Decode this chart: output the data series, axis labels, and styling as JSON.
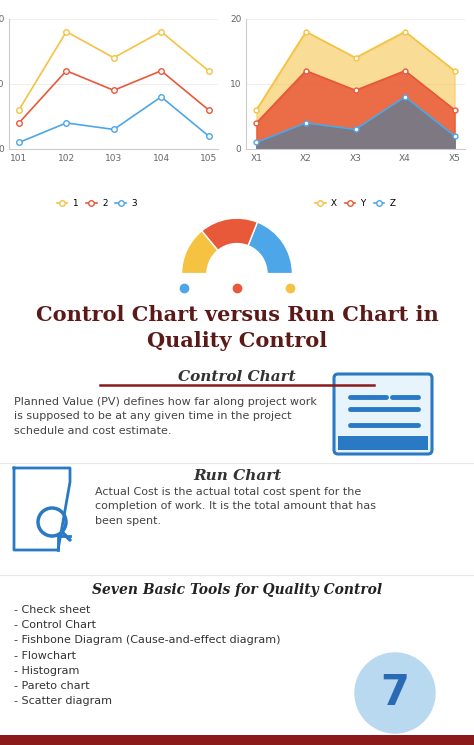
{
  "bg_color": "#ffffff",
  "title": "Control Chart versus Run Chart in\nQuality Control",
  "title_color": "#5b1a18",
  "title_fontsize": 15,
  "line_chart_x": [
    101,
    102,
    103,
    104,
    105
  ],
  "line_chart_y1": [
    6,
    18,
    14,
    18,
    12
  ],
  "line_chart_y2": [
    4,
    12,
    9,
    12,
    6
  ],
  "line_chart_y3": [
    1,
    4,
    3,
    8,
    2
  ],
  "line_color1": "#f5c242",
  "line_color2": "#e8593a",
  "line_color3": "#4da6e8",
  "area_chart_x": [
    "X1",
    "X2",
    "X3",
    "X4",
    "X5"
  ],
  "area_chart_y1": [
    6,
    18,
    14,
    18,
    12
  ],
  "area_chart_y2": [
    4,
    12,
    9,
    12,
    6
  ],
  "area_chart_y3": [
    1,
    4,
    3,
    8,
    2
  ],
  "area_color1": "#f5c242",
  "area_color2": "#e8593a",
  "area_color3": "#6b7b8d",
  "donut_colors": [
    "#4da6e8",
    "#e8593a",
    "#f5c242"
  ],
  "donut_sizes": [
    0.38,
    0.34,
    0.28
  ],
  "dots_colors": [
    "#4da6e8",
    "#e8593a",
    "#f5c242"
  ],
  "section1_title": "Control Chart",
  "section1_underline_color": "#8b1a1a",
  "section1_text": "Planned Value (PV) defines how far along project work\nis supposed to be at any given time in the project\nschedule and cost estimate.",
  "section2_title": "Run Chart",
  "section2_text": "Actual Cost is the actual total cost spent for the\ncompletion of work. It is the total amount that has\nbeen spent.",
  "section3_title": "Seven Basic Tools for Quality Control",
  "section3_items": [
    "- Check sheet",
    "- Control Chart",
    "- Fishbone Diagram (Cause-and-effect diagram)",
    "- Flowchart",
    "- Histogram",
    "- Pareto chart",
    "- Scatter diagram"
  ],
  "circle_number": "7",
  "circle_color": "#b8d9f0",
  "circle_number_color": "#2a6ab5",
  "bottom_bar_color": "#8b1a1a",
  "icon_blue": "#2979c4",
  "icon_bg": "#e8f4fb",
  "text_dark": "#444444",
  "text_gray": "#333333",
  "sep_color": "#e8e8e8"
}
